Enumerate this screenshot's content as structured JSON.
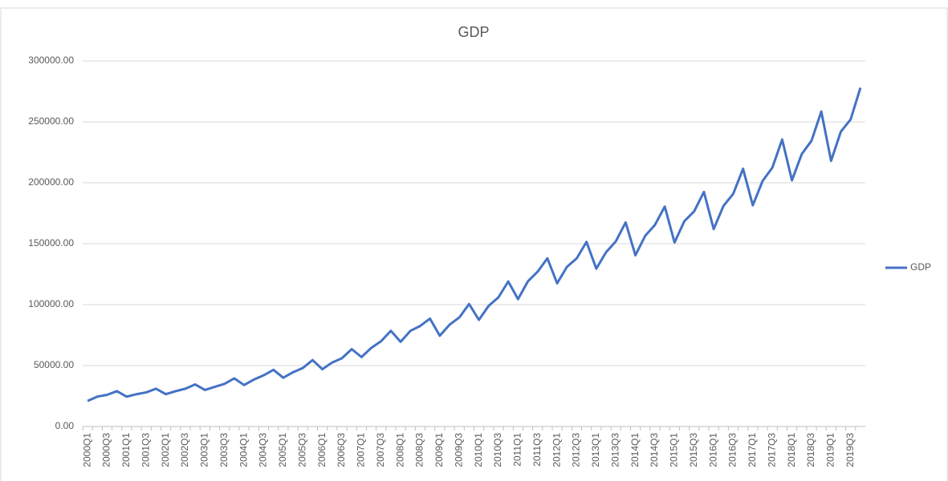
{
  "chart_data": {
    "type": "line",
    "title": "GDP",
    "categories": [
      "2000Q1",
      null,
      "2000Q3",
      null,
      "2001Q1",
      null,
      "2001Q3",
      null,
      "2002Q1",
      null,
      "2002Q3",
      null,
      "2003Q1",
      null,
      "2003Q3",
      null,
      "2004Q1",
      null,
      "2004Q3",
      null,
      "2005Q1",
      null,
      "2005Q3",
      null,
      "2006Q1",
      null,
      "2006Q3",
      null,
      "2007Q1",
      null,
      "2007Q3",
      null,
      "2008Q1",
      null,
      "2008Q3",
      null,
      "2009Q1",
      null,
      "2009Q3",
      null,
      "2010Q1",
      null,
      "2010Q3",
      null,
      "2011Q1",
      null,
      "2011Q3",
      null,
      "2012Q1",
      null,
      "2012Q3",
      null,
      "2013Q1",
      null,
      "2013Q3",
      null,
      "2014Q1",
      null,
      "2014Q3",
      null,
      "2015Q1",
      null,
      "2015Q3",
      null,
      "2016Q1",
      null,
      "2016Q3",
      null,
      "2017Q1",
      null,
      "2017Q3",
      null,
      "2018Q1",
      null,
      "2018Q3",
      null,
      "2019Q1",
      null,
      "2019Q3",
      null
    ],
    "series": [
      {
        "name": "GDP",
        "color": "#4472c4",
        "values": [
          21000,
          24500,
          26000,
          29000,
          24500,
          26500,
          28000,
          31000,
          26500,
          29000,
          31000,
          34500,
          30000,
          32500,
          35000,
          39500,
          34000,
          38500,
          42000,
          46500,
          40000,
          44500,
          48000,
          54500,
          47000,
          52500,
          56000,
          63500,
          57000,
          64500,
          70000,
          78500,
          69500,
          78500,
          82500,
          88500,
          74500,
          83500,
          89500,
          100500,
          87500,
          99000,
          106000,
          119000,
          104500,
          119000,
          127000,
          138000,
          117500,
          131000,
          138000,
          151500,
          129500,
          143000,
          152000,
          167500,
          140500,
          156500,
          165500,
          180500,
          151000,
          168500,
          176500,
          192500,
          162000,
          181000,
          191000,
          211500,
          181500,
          201500,
          212500,
          235500,
          202000,
          223500,
          234500,
          258500,
          218000,
          242000,
          252000,
          278000
        ]
      }
    ],
    "ylim": [
      0,
      300000
    ],
    "yticks": [
      {
        "value": 0,
        "label": "0.00"
      },
      {
        "value": 50000,
        "label": "50000.00"
      },
      {
        "value": 100000,
        "label": "100000.00"
      },
      {
        "value": 150000,
        "label": "150000.00"
      },
      {
        "value": 200000,
        "label": "200000.00"
      },
      {
        "value": 250000,
        "label": "250000.00"
      },
      {
        "value": 300000,
        "label": "300000.00"
      }
    ],
    "grid": true,
    "legend": "right"
  }
}
